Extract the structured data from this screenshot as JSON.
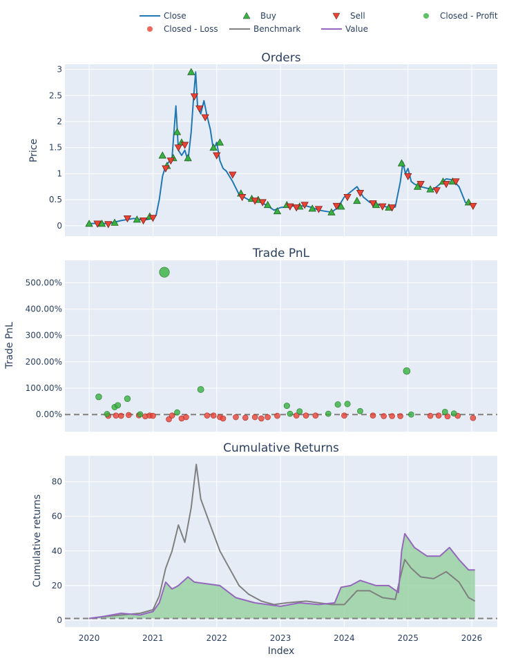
{
  "colors": {
    "plot_bg": "#e5ecf6",
    "grid": "#ffffff",
    "close": "#1f77b4",
    "buy": "#37b13f",
    "sell": "#ea4335",
    "profit": "#37b13f",
    "loss": "#ea4335",
    "benchmark": "#7f7f7f",
    "value": "#9467bd",
    "fill_positive": "#8fcf98"
  },
  "chart_data": [
    {
      "type": "line",
      "id": "orders",
      "title": "Orders",
      "xlabel": "",
      "ylabel": "Price",
      "xlim": [
        2019.62,
        2026.4
      ],
      "ylim": [
        -0.2,
        3.1
      ],
      "xticks": [
        2020,
        2021,
        2022,
        2023,
        2024,
        2025,
        2026
      ],
      "yticks": [
        0,
        0.5,
        1,
        1.5,
        2,
        2.5,
        3
      ],
      "ytick_labels": [
        "0",
        "0.5",
        "1",
        "1.5",
        "2",
        "2.5",
        "3"
      ],
      "series": [
        {
          "name": "Close",
          "x": [
            2020.0,
            2020.15,
            2020.3,
            2020.5,
            2020.7,
            2020.85,
            2020.95,
            2021.05,
            2021.1,
            2021.15,
            2021.2,
            2021.3,
            2021.36,
            2021.4,
            2021.45,
            2021.5,
            2021.55,
            2021.6,
            2021.64,
            2021.67,
            2021.7,
            2021.75,
            2021.8,
            2021.85,
            2021.9,
            2021.95,
            2022.0,
            2022.05,
            2022.1,
            2022.15,
            2022.25,
            2022.35,
            2022.5,
            2022.7,
            2022.8,
            2022.9,
            2023.0,
            2023.2,
            2023.4,
            2023.5,
            2023.6,
            2023.7,
            2023.8,
            2023.9,
            2024.0,
            2024.1,
            2024.2,
            2024.3,
            2024.4,
            2024.5,
            2024.6,
            2024.7,
            2024.8,
            2024.88,
            2024.92,
            2024.96,
            2025.0,
            2025.05,
            2025.1,
            2025.2,
            2025.3,
            2025.4,
            2025.5,
            2025.6,
            2025.7,
            2025.8,
            2025.9,
            2026.0,
            2026.05
          ],
          "values": [
            0.04,
            0.05,
            0.04,
            0.1,
            0.14,
            0.11,
            0.13,
            0.2,
            0.5,
            0.95,
            1.15,
            1.3,
            2.3,
            1.45,
            1.35,
            1.45,
            1.25,
            1.8,
            2.5,
            2.95,
            2.3,
            2.15,
            2.4,
            2.1,
            1.85,
            1.45,
            1.6,
            1.25,
            1.1,
            1.05,
            0.85,
            0.6,
            0.5,
            0.45,
            0.38,
            0.3,
            0.35,
            0.38,
            0.38,
            0.35,
            0.3,
            0.28,
            0.26,
            0.35,
            0.55,
            0.65,
            0.75,
            0.55,
            0.45,
            0.42,
            0.38,
            0.35,
            0.36,
            0.85,
            1.22,
            1.0,
            1.1,
            0.85,
            0.8,
            0.75,
            0.72,
            0.7,
            0.8,
            0.9,
            0.88,
            0.75,
            0.45,
            0.4,
            0.38
          ]
        }
      ],
      "buy": {
        "name": "Buy",
        "x": [
          2020.0,
          2020.2,
          2020.4,
          2020.75,
          2020.95,
          2021.15,
          2021.22,
          2021.32,
          2021.38,
          2021.45,
          2021.55,
          2021.6,
          2021.95,
          2022.05,
          2022.38,
          2022.55,
          2022.65,
          2022.8,
          2022.95,
          2023.1,
          2023.3,
          2023.5,
          2023.8,
          2023.95,
          2024.2,
          2024.5,
          2024.7,
          2024.9,
          2025.15,
          2025.35,
          2025.55,
          2025.7,
          2025.95
        ],
        "values": [
          0.04,
          0.04,
          0.06,
          0.12,
          0.18,
          1.35,
          1.15,
          1.3,
          1.8,
          1.6,
          1.3,
          2.95,
          1.5,
          1.6,
          0.62,
          0.52,
          0.5,
          0.4,
          0.28,
          0.4,
          0.37,
          0.33,
          0.26,
          0.37,
          0.48,
          0.4,
          0.35,
          1.2,
          0.75,
          0.7,
          0.85,
          0.85,
          0.45
        ]
      },
      "sell": {
        "name": "Sell",
        "x": [
          2020.13,
          2020.3,
          2020.6,
          2020.85,
          2021.0,
          2021.2,
          2021.28,
          2021.4,
          2021.5,
          2021.65,
          2021.73,
          2021.82,
          2022.0,
          2022.25,
          2022.4,
          2022.6,
          2022.72,
          2023.15,
          2023.25,
          2023.38,
          2023.6,
          2023.88,
          2024.05,
          2024.25,
          2024.45,
          2024.6,
          2024.75,
          2025.0,
          2025.2,
          2025.45,
          2025.6,
          2025.75,
          2026.02
        ],
        "values": [
          0.04,
          0.03,
          0.14,
          0.1,
          0.15,
          1.1,
          1.25,
          1.5,
          1.55,
          2.48,
          2.25,
          2.08,
          1.35,
          0.98,
          0.55,
          0.48,
          0.45,
          0.37,
          0.35,
          0.4,
          0.32,
          0.38,
          0.55,
          0.63,
          0.43,
          0.37,
          0.35,
          0.95,
          0.8,
          0.68,
          0.8,
          0.85,
          0.38
        ]
      }
    },
    {
      "type": "scatter",
      "id": "trade_pnl",
      "title": "Trade PnL",
      "xlabel": "",
      "ylabel": "Trade PnL",
      "xlim": [
        2019.62,
        2026.4
      ],
      "ylim": [
        -0.65,
        5.85
      ],
      "xticks": [
        2020,
        2021,
        2022,
        2023,
        2024,
        2025,
        2026
      ],
      "yticks": [
        0,
        1,
        2,
        3,
        4,
        5
      ],
      "ytick_labels": [
        "0.00%",
        "100.00%",
        "200.00%",
        "300.00%",
        "400.00%",
        "500.00%"
      ],
      "series": [
        {
          "name": "Closed - Profit",
          "x": [
            2020.15,
            2020.28,
            2020.4,
            2020.45,
            2020.6,
            2020.8,
            2021.18,
            2021.38,
            2021.75,
            2023.1,
            2023.15,
            2023.3,
            2023.75,
            2023.9,
            2024.05,
            2024.25,
            2024.98,
            2025.05,
            2025.58,
            2025.72
          ],
          "values": [
            0.67,
            0.02,
            0.28,
            0.35,
            0.6,
            0.01,
            5.4,
            0.08,
            0.95,
            0.33,
            0.03,
            0.12,
            0.03,
            0.38,
            0.4,
            0.13,
            1.65,
            0.0,
            0.1,
            0.04
          ]
        },
        {
          "name": "Closed - Loss",
          "x": [
            2020.3,
            2020.42,
            2020.5,
            2020.62,
            2020.78,
            2020.88,
            2020.95,
            2021.0,
            2021.25,
            2021.3,
            2021.45,
            2021.52,
            2021.85,
            2021.95,
            2022.05,
            2022.1,
            2022.3,
            2022.45,
            2022.6,
            2022.7,
            2022.8,
            2022.95,
            2023.25,
            2023.4,
            2023.55,
            2024.0,
            2024.45,
            2024.62,
            2024.75,
            2024.88,
            2025.35,
            2025.48,
            2025.62,
            2025.78,
            2026.02
          ],
          "values": [
            -0.05,
            -0.04,
            -0.05,
            -0.02,
            -0.03,
            -0.07,
            -0.04,
            -0.05,
            -0.18,
            -0.04,
            -0.15,
            -0.1,
            -0.04,
            -0.04,
            -0.1,
            -0.15,
            -0.1,
            -0.12,
            -0.1,
            -0.15,
            -0.1,
            -0.05,
            -0.04,
            -0.04,
            -0.04,
            -0.04,
            -0.04,
            -0.06,
            -0.06,
            -0.06,
            -0.05,
            -0.04,
            -0.07,
            -0.05,
            -0.13
          ]
        }
      ]
    },
    {
      "type": "area",
      "id": "cumulative_returns",
      "title": "Cumulative Returns",
      "xlabel": "Index",
      "ylabel": "Cumulative returns",
      "xlim": [
        2019.62,
        2026.4
      ],
      "ylim": [
        -4,
        95
      ],
      "xticks": [
        2020,
        2021,
        2022,
        2023,
        2024,
        2025,
        2026
      ],
      "xtick_labels": [
        "2020",
        "2021",
        "2022",
        "2023",
        "2024",
        "2025",
        "2026"
      ],
      "yticks": [
        0,
        20,
        40,
        60,
        80
      ],
      "ytick_labels": [
        "0",
        "20",
        "40",
        "60",
        "80"
      ],
      "baseline": 1,
      "series": [
        {
          "name": "Benchmark",
          "x": [
            2020.0,
            2020.2,
            2020.5,
            2020.8,
            2021.0,
            2021.1,
            2021.2,
            2021.3,
            2021.4,
            2021.5,
            2021.6,
            2021.68,
            2021.75,
            2021.85,
            2021.95,
            2022.05,
            2022.2,
            2022.35,
            2022.5,
            2022.7,
            2022.9,
            2023.1,
            2023.4,
            2023.6,
            2023.8,
            2024.0,
            2024.2,
            2024.4,
            2024.6,
            2024.8,
            2024.88,
            2024.95,
            2025.05,
            2025.2,
            2025.4,
            2025.6,
            2025.8,
            2025.95,
            2026.05
          ],
          "values": [
            1,
            2,
            3,
            4,
            6,
            14,
            30,
            40,
            55,
            45,
            65,
            90,
            70,
            60,
            50,
            40,
            30,
            20,
            15,
            11,
            9,
            10,
            11,
            10,
            9,
            9,
            17,
            17,
            13,
            12,
            25,
            35,
            30,
            25,
            24,
            28,
            22,
            13,
            11
          ]
        },
        {
          "name": "Value",
          "x": [
            2020.0,
            2020.2,
            2020.5,
            2020.8,
            2021.0,
            2021.1,
            2021.2,
            2021.3,
            2021.4,
            2021.55,
            2021.65,
            2021.85,
            2022.05,
            2022.3,
            2022.6,
            2022.8,
            2023.0,
            2023.3,
            2023.6,
            2023.85,
            2023.95,
            2024.1,
            2024.25,
            2024.5,
            2024.7,
            2024.85,
            2024.9,
            2024.95,
            2025.1,
            2025.3,
            2025.5,
            2025.65,
            2025.8,
            2025.95,
            2026.05
          ],
          "values": [
            1,
            2,
            4,
            3,
            5,
            10,
            22,
            18,
            20,
            25,
            22,
            21,
            20,
            13,
            10,
            9,
            8,
            10,
            9,
            10,
            19,
            20,
            23,
            20,
            20,
            16,
            40,
            50,
            42,
            37,
            37,
            42,
            35,
            29,
            29
          ]
        }
      ],
      "filled": {
        "name": "Value",
        "fill_to": "baseline"
      }
    }
  ],
  "legend": {
    "position": "top",
    "items": [
      {
        "label": "Close",
        "kind": "line",
        "color": "#1f77b4"
      },
      {
        "label": "Buy",
        "kind": "triangle-up",
        "color": "#37b13f"
      },
      {
        "label": "Sell",
        "kind": "triangle-down",
        "color": "#ea4335"
      },
      {
        "label": "Closed - Profit",
        "kind": "circle",
        "color": "#37b13f"
      },
      {
        "label": "Closed - Loss",
        "kind": "circle",
        "color": "#ea4335"
      },
      {
        "label": "Benchmark",
        "kind": "line",
        "color": "#7f7f7f"
      },
      {
        "label": "Value",
        "kind": "line",
        "color": "#9467bd"
      }
    ]
  }
}
